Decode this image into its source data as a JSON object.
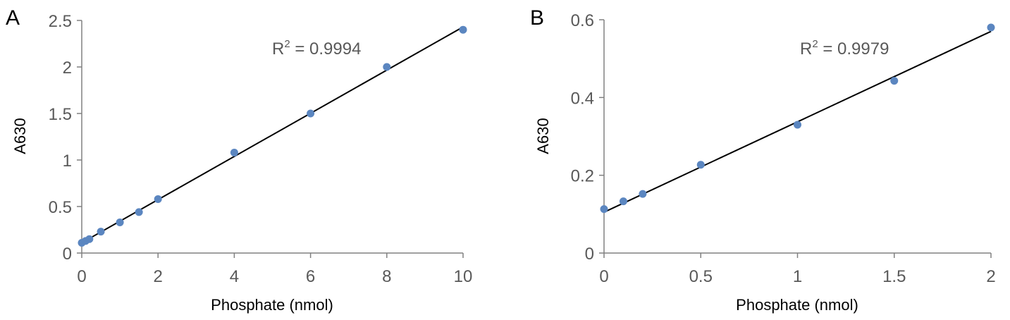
{
  "chart_data": [
    {
      "type": "scatter",
      "panel_label": "A",
      "title": "",
      "xlabel": "Phosphate (nmol)",
      "ylabel": "A630",
      "xlim": [
        0,
        10
      ],
      "ylim": [
        0,
        2.5
      ],
      "xticks": [
        0,
        2,
        4,
        6,
        8,
        10
      ],
      "yticks": [
        0,
        0.5,
        1,
        1.5,
        2,
        2.5
      ],
      "x": [
        0,
        0.1,
        0.2,
        0.5,
        1,
        1.5,
        2,
        4,
        6,
        8,
        10
      ],
      "y": [
        0.11,
        0.13,
        0.15,
        0.23,
        0.33,
        0.44,
        0.58,
        1.08,
        1.5,
        2.0,
        2.4
      ],
      "trendline": {
        "type": "linear",
        "x": [
          0,
          10
        ],
        "y": [
          0.11,
          2.43
        ]
      },
      "annotation": {
        "r2_prefix": "R",
        "r2_sup": "2",
        "r2_value": " = 0.9994"
      },
      "grid": false,
      "marker_color": "#5b86c0",
      "line_color": "#000000"
    },
    {
      "type": "scatter",
      "panel_label": "B",
      "title": "",
      "xlabel": "Phosphate (nmol)",
      "ylabel": "A630",
      "xlim": [
        0,
        2
      ],
      "ylim": [
        0,
        0.6
      ],
      "xticks": [
        0,
        0.5,
        1,
        1.5,
        2
      ],
      "yticks": [
        0,
        0.2,
        0.4,
        0.6
      ],
      "x": [
        0,
        0.1,
        0.2,
        0.5,
        1,
        1.5,
        2
      ],
      "y": [
        0.113,
        0.133,
        0.152,
        0.227,
        0.33,
        0.443,
        0.58
      ],
      "trendline": {
        "type": "linear",
        "x": [
          0,
          2
        ],
        "y": [
          0.105,
          0.57
        ]
      },
      "annotation": {
        "r2_prefix": "R",
        "r2_sup": "2",
        "r2_value": " = 0.9979"
      },
      "grid": false,
      "marker_color": "#5b86c0",
      "line_color": "#000000"
    }
  ]
}
